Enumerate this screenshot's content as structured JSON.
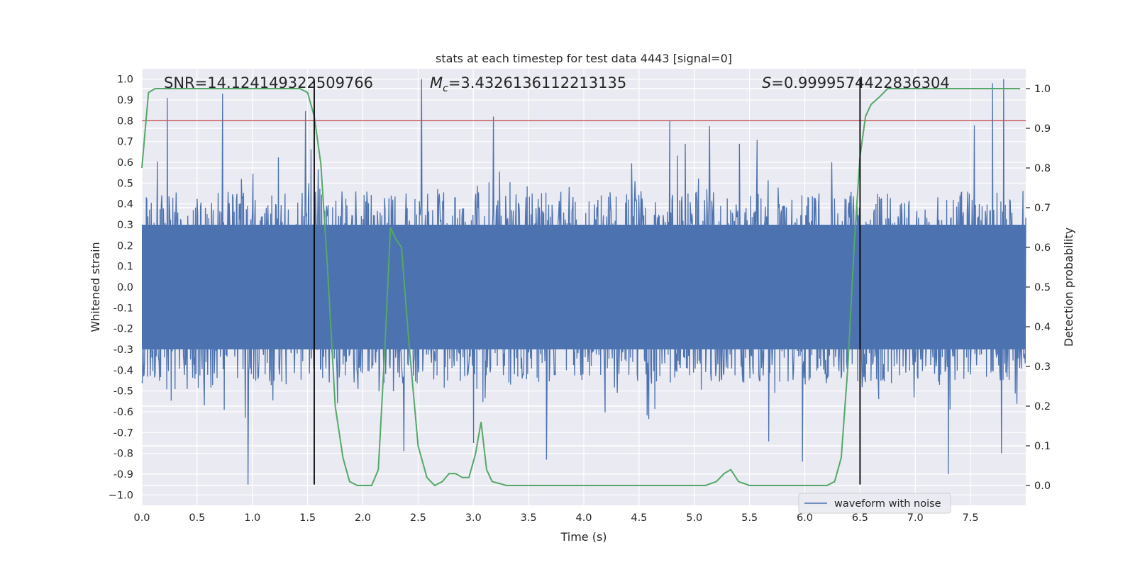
{
  "chart_data": {
    "type": "line",
    "title": "stats at each timestep for test data 4443 [signal=0]",
    "xlabel": "Time (s)",
    "ylabel_left": "Whitened strain",
    "ylabel_right": "Detection probability",
    "xlim": [
      0.0,
      8.0
    ],
    "ylim_left": [
      -1.05,
      1.05
    ],
    "ylim_right": [
      -0.05,
      1.05
    ],
    "xticks": [
      "0.0",
      "0.5",
      "1.0",
      "1.5",
      "2.0",
      "2.5",
      "3.0",
      "3.5",
      "4.0",
      "4.5",
      "5.0",
      "5.5",
      "6.0",
      "6.5",
      "7.0",
      "7.5"
    ],
    "xtick_values": [
      0.0,
      0.5,
      1.0,
      1.5,
      2.0,
      2.5,
      3.0,
      3.5,
      4.0,
      4.5,
      5.0,
      5.5,
      6.0,
      6.5,
      7.0,
      7.5
    ],
    "yticks_left": [
      "1.0",
      "0.9",
      "0.8",
      "0.7",
      "0.6",
      "0.5",
      "0.4",
      "0.3",
      "0.2",
      "0.1",
      "0.0",
      "-0.1",
      "-0.2",
      "-0.3",
      "-0.4",
      "-0.5",
      "-0.6",
      "-0.7",
      "-0.8",
      "-0.9",
      "−1.0"
    ],
    "ytick_left_values": [
      1.0,
      0.9,
      0.8,
      0.7,
      0.6,
      0.5,
      0.4,
      0.3,
      0.2,
      0.1,
      0.0,
      -0.1,
      -0.2,
      -0.3,
      -0.4,
      -0.5,
      -0.6,
      -0.7,
      -0.8,
      -0.9,
      -1.0
    ],
    "yticks_right": [
      "1.0",
      "0.9",
      "0.8",
      "0.7",
      "0.6",
      "0.5",
      "0.4",
      "0.3",
      "0.2",
      "0.1",
      "0.0"
    ],
    "ytick_right_values": [
      1.0,
      0.9,
      0.8,
      0.7,
      0.6,
      0.5,
      0.4,
      0.3,
      0.2,
      0.1,
      0.0
    ],
    "annotations": {
      "snr": "SNR=14.124149322509766",
      "mc_symbol": "M",
      "mc_sub": "c",
      "mc_value": "=3.4326136112213135",
      "s_symbol": "S",
      "s_value": "=0.9999574422836304"
    },
    "threshold": {
      "value": 0.8,
      "axis": "left",
      "color": "#c44e52"
    },
    "vlines": {
      "x": [
        1.56,
        6.5
      ],
      "ymin": -0.95,
      "ymax": 1.0,
      "color": "#000000"
    },
    "series": [
      {
        "name": "waveform with noise",
        "axis": "left",
        "color": "#4c72b0",
        "band_halfwidth": 0.3,
        "samples": 1600,
        "seed": 4443,
        "peaks": [
          {
            "x": 0.23,
            "y": 0.91
          },
          {
            "x": 0.73,
            "y": 0.93
          },
          {
            "x": 2.53,
            "y": 1.0
          },
          {
            "x": 3.18,
            "y": 0.82
          },
          {
            "x": 4.78,
            "y": 0.8
          },
          {
            "x": 7.7,
            "y": 0.98
          },
          {
            "x": 7.8,
            "y": 1.0
          },
          {
            "x": 0.96,
            "y": -0.95
          },
          {
            "x": 3.0,
            "y": -0.75
          },
          {
            "x": 3.66,
            "y": -0.83
          },
          {
            "x": 7.3,
            "y": -0.9
          },
          {
            "x": 7.78,
            "y": -0.8
          },
          {
            "x": 2.37,
            "y": -0.79
          },
          {
            "x": 5.98,
            "y": -0.84
          }
        ]
      },
      {
        "name": "detection probability",
        "axis": "right",
        "color": "#55a868",
        "points": [
          [
            0.0,
            0.8
          ],
          [
            0.06,
            0.99
          ],
          [
            0.12,
            1.0
          ],
          [
            0.3,
            1.0
          ],
          [
            0.6,
            1.0
          ],
          [
            1.0,
            1.0
          ],
          [
            1.3,
            1.0
          ],
          [
            1.43,
            1.0
          ],
          [
            1.5,
            0.99
          ],
          [
            1.56,
            0.93
          ],
          [
            1.62,
            0.81
          ],
          [
            1.68,
            0.55
          ],
          [
            1.75,
            0.2
          ],
          [
            1.82,
            0.07
          ],
          [
            1.88,
            0.01
          ],
          [
            1.95,
            0.0
          ],
          [
            2.02,
            0.0
          ],
          [
            2.08,
            0.0
          ],
          [
            2.14,
            0.04
          ],
          [
            2.2,
            0.35
          ],
          [
            2.25,
            0.65
          ],
          [
            2.3,
            0.62
          ],
          [
            2.35,
            0.6
          ],
          [
            2.42,
            0.35
          ],
          [
            2.5,
            0.1
          ],
          [
            2.58,
            0.02
          ],
          [
            2.65,
            0.0
          ],
          [
            2.72,
            0.01
          ],
          [
            2.78,
            0.03
          ],
          [
            2.84,
            0.03
          ],
          [
            2.9,
            0.02
          ],
          [
            2.96,
            0.02
          ],
          [
            3.02,
            0.08
          ],
          [
            3.07,
            0.16
          ],
          [
            3.12,
            0.04
          ],
          [
            3.17,
            0.01
          ],
          [
            3.3,
            0.0
          ],
          [
            3.5,
            0.0
          ],
          [
            3.7,
            0.0
          ],
          [
            3.9,
            0.0
          ],
          [
            4.1,
            0.0
          ],
          [
            4.3,
            0.0
          ],
          [
            4.5,
            0.0
          ],
          [
            4.7,
            0.0
          ],
          [
            4.9,
            0.0
          ],
          [
            5.1,
            0.0
          ],
          [
            5.2,
            0.01
          ],
          [
            5.27,
            0.03
          ],
          [
            5.33,
            0.04
          ],
          [
            5.4,
            0.01
          ],
          [
            5.5,
            0.0
          ],
          [
            5.7,
            0.0
          ],
          [
            5.9,
            0.0
          ],
          [
            6.1,
            0.0
          ],
          [
            6.2,
            0.0
          ],
          [
            6.27,
            0.01
          ],
          [
            6.33,
            0.07
          ],
          [
            6.39,
            0.3
          ],
          [
            6.45,
            0.62
          ],
          [
            6.5,
            0.83
          ],
          [
            6.55,
            0.93
          ],
          [
            6.6,
            0.96
          ],
          [
            6.68,
            0.98
          ],
          [
            6.75,
            1.0
          ],
          [
            6.85,
            1.0
          ],
          [
            7.0,
            1.0
          ],
          [
            7.5,
            1.0
          ],
          [
            7.95,
            1.0
          ]
        ]
      }
    ],
    "legend": {
      "label": "waveform with noise",
      "placement": "lower-right"
    }
  }
}
